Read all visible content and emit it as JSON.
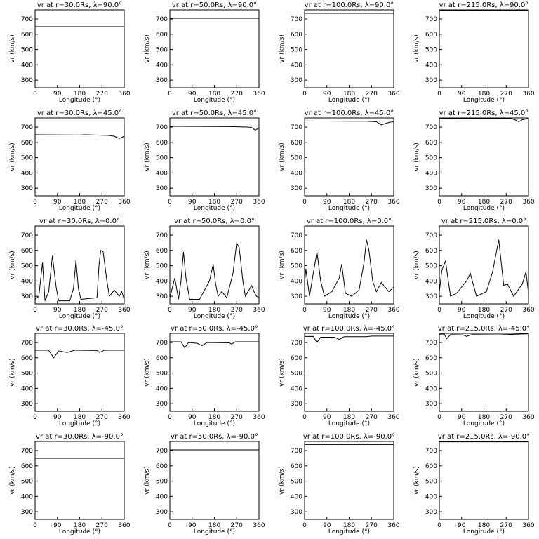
{
  "chart_data": [
    {
      "type": "line",
      "title": "vr at r=30.0Rs, λ=90.0°",
      "xlabel": "Longitude (°)",
      "ylabel": "vr (km/s)",
      "x": [
        0,
        360
      ],
      "values": [
        650,
        650
      ],
      "xlim": [
        0,
        360
      ],
      "ylim": [
        250,
        760
      ],
      "xticks": [
        0,
        90,
        180,
        270,
        360
      ],
      "yticks": [
        300,
        400,
        500,
        600,
        700
      ],
      "color": "#000000"
    },
    {
      "type": "line",
      "title": "vr at r=50.0Rs, λ=90.0°",
      "xlabel": "Longitude (°)",
      "ylabel": "vr (km/s)",
      "x": [
        0,
        360
      ],
      "values": [
        705,
        705
      ],
      "xlim": [
        0,
        360
      ],
      "ylim": [
        250,
        760
      ],
      "xticks": [
        0,
        90,
        180,
        270,
        360
      ],
      "yticks": [
        300,
        400,
        500,
        600,
        700
      ],
      "color": "#000000"
    },
    {
      "type": "line",
      "title": "vr at r=100.0Rs, λ=90.0°",
      "xlabel": "Longitude (°)",
      "ylabel": "vr (km/s)",
      "x": [
        0,
        360
      ],
      "values": [
        737,
        737
      ],
      "xlim": [
        0,
        360
      ],
      "ylim": [
        250,
        760
      ],
      "xticks": [
        0,
        90,
        180,
        270,
        360
      ],
      "yticks": [
        300,
        400,
        500,
        600,
        700
      ],
      "color": "#000000"
    },
    {
      "type": "line",
      "title": "vr at r=215.0Rs, λ=90.0°",
      "xlabel": "Longitude (°)",
      "ylabel": "vr (km/s)",
      "x": [
        0,
        360
      ],
      "values": [
        757,
        757
      ],
      "xlim": [
        0,
        360
      ],
      "ylim": [
        250,
        760
      ],
      "xticks": [
        0,
        90,
        180,
        270,
        360
      ],
      "yticks": [
        300,
        400,
        500,
        600,
        700
      ],
      "color": "#000000"
    },
    {
      "type": "line",
      "title": "vr at r=30.0Rs, λ=45.0°",
      "xlabel": "Longitude (°)",
      "ylabel": "vr (km/s)",
      "x": [
        0,
        180,
        200,
        300,
        320,
        340,
        350,
        360
      ],
      "values": [
        650,
        648,
        650,
        645,
        640,
        625,
        632,
        640
      ],
      "xlim": [
        0,
        360
      ],
      "ylim": [
        250,
        760
      ],
      "xticks": [
        0,
        90,
        180,
        270,
        360
      ],
      "yticks": [
        300,
        400,
        500,
        600,
        700
      ],
      "color": "#000000"
    },
    {
      "type": "line",
      "title": "vr at r=50.0Rs, λ=45.0°",
      "xlabel": "Longitude (°)",
      "ylabel": "vr (km/s)",
      "x": [
        0,
        250,
        310,
        330,
        345,
        355,
        360
      ],
      "values": [
        705,
        703,
        700,
        698,
        680,
        690,
        695
      ],
      "xlim": [
        0,
        360
      ],
      "ylim": [
        250,
        760
      ],
      "xticks": [
        0,
        90,
        180,
        270,
        360
      ],
      "yticks": [
        300,
        400,
        500,
        600,
        700
      ],
      "color": "#000000"
    },
    {
      "type": "line",
      "title": "vr at r=100.0Rs, λ=45.0°",
      "xlabel": "Longitude (°)",
      "ylabel": "vr (km/s)",
      "x": [
        0,
        250,
        290,
        310,
        330,
        345,
        360
      ],
      "values": [
        740,
        738,
        735,
        715,
        725,
        732,
        735
      ],
      "xlim": [
        0,
        360
      ],
      "ylim": [
        250,
        760
      ],
      "xticks": [
        0,
        90,
        180,
        270,
        360
      ],
      "yticks": [
        300,
        400,
        500,
        600,
        700
      ],
      "color": "#000000"
    },
    {
      "type": "line",
      "title": "vr at r=215.0Rs, λ=45.0°",
      "xlabel": "Longitude (°)",
      "ylabel": "vr (km/s)",
      "x": [
        0,
        290,
        310,
        320,
        335,
        360
      ],
      "values": [
        757,
        756,
        745,
        735,
        748,
        757
      ],
      "xlim": [
        0,
        360
      ],
      "ylim": [
        250,
        760
      ],
      "xticks": [
        0,
        90,
        180,
        270,
        360
      ],
      "yticks": [
        300,
        400,
        500,
        600,
        700
      ],
      "color": "#000000"
    },
    {
      "type": "line",
      "title": "vr at r=30.0Rs, λ=0.0°",
      "xlabel": "Longitude (°)",
      "ylabel": "vr (km/s)",
      "x": [
        0,
        15,
        30,
        40,
        55,
        70,
        85,
        95,
        140,
        155,
        165,
        175,
        185,
        250,
        258,
        265,
        275,
        290,
        300,
        320,
        340,
        350,
        360
      ],
      "values": [
        280,
        300,
        520,
        270,
        330,
        565,
        360,
        270,
        270,
        350,
        535,
        350,
        280,
        290,
        500,
        600,
        590,
        400,
        300,
        340,
        300,
        330,
        280
      ],
      "xlim": [
        0,
        360
      ],
      "ylim": [
        250,
        760
      ],
      "xticks": [
        0,
        90,
        180,
        270,
        360
      ],
      "yticks": [
        300,
        400,
        500,
        600,
        700
      ],
      "color": "#000000"
    },
    {
      "type": "line",
      "title": "vr at r=50.0Rs, λ=0.0°",
      "xlabel": "Longitude (°)",
      "ylabel": "vr (km/s)",
      "x": [
        0,
        20,
        35,
        45,
        55,
        65,
        80,
        120,
        160,
        175,
        185,
        195,
        210,
        230,
        255,
        270,
        280,
        295,
        305,
        330,
        340,
        350,
        360
      ],
      "values": [
        290,
        420,
        280,
        400,
        590,
        420,
        280,
        280,
        400,
        510,
        380,
        300,
        330,
        290,
        450,
        650,
        620,
        400,
        300,
        370,
        330,
        300,
        290
      ],
      "xlim": [
        0,
        360
      ],
      "ylim": [
        250,
        760
      ],
      "xticks": [
        0,
        90,
        180,
        270,
        360
      ],
      "yticks": [
        300,
        400,
        500,
        600,
        700
      ],
      "color": "#000000"
    },
    {
      "type": "line",
      "title": "vr at r=100.0Rs, λ=0.0°",
      "xlabel": "Longitude (°)",
      "ylabel": "vr (km/s)",
      "x": [
        0,
        5,
        20,
        35,
        50,
        65,
        80,
        110,
        140,
        150,
        165,
        190,
        220,
        240,
        250,
        260,
        275,
        290,
        310,
        340,
        360
      ],
      "values": [
        380,
        480,
        300,
        450,
        590,
        400,
        300,
        330,
        420,
        510,
        320,
        300,
        340,
        520,
        670,
        600,
        400,
        330,
        390,
        330,
        360
      ],
      "xlim": [
        0,
        360
      ],
      "ylim": [
        250,
        760
      ],
      "xticks": [
        0,
        90,
        180,
        270,
        360
      ],
      "yticks": [
        300,
        400,
        500,
        600,
        700
      ],
      "color": "#000000"
    },
    {
      "type": "line",
      "title": "vr at r=215.0Rs, λ=0.0°",
      "xlabel": "Longitude (°)",
      "ylabel": "vr (km/s)",
      "x": [
        0,
        10,
        25,
        45,
        70,
        110,
        125,
        150,
        190,
        215,
        240,
        260,
        275,
        300,
        335,
        350,
        360
      ],
      "values": [
        330,
        470,
        530,
        300,
        320,
        400,
        450,
        300,
        330,
        460,
        670,
        370,
        380,
        300,
        380,
        460,
        320
      ],
      "xlim": [
        0,
        360
      ],
      "ylim": [
        250,
        760
      ],
      "xticks": [
        0,
        90,
        180,
        270,
        360
      ],
      "yticks": [
        300,
        400,
        500,
        600,
        700
      ],
      "color": "#000000"
    },
    {
      "type": "line",
      "title": "vr at r=30.0Rs, λ=-45.0°",
      "xlabel": "Longitude (°)",
      "ylabel": "vr (km/s)",
      "x": [
        0,
        55,
        75,
        95,
        130,
        160,
        250,
        260,
        280,
        360
      ],
      "values": [
        650,
        650,
        600,
        645,
        635,
        650,
        648,
        635,
        650,
        650
      ],
      "xlim": [
        0,
        360
      ],
      "ylim": [
        250,
        760
      ],
      "xticks": [
        0,
        90,
        180,
        270,
        360
      ],
      "yticks": [
        300,
        400,
        500,
        600,
        700
      ],
      "color": "#000000"
    },
    {
      "type": "line",
      "title": "vr at r=50.0Rs, λ=-45.0°",
      "xlabel": "Longitude (°)",
      "ylabel": "vr (km/s)",
      "x": [
        0,
        45,
        60,
        75,
        110,
        130,
        150,
        240,
        250,
        265,
        360
      ],
      "values": [
        705,
        705,
        665,
        700,
        695,
        680,
        700,
        698,
        690,
        705,
        705
      ],
      "xlim": [
        0,
        360
      ],
      "ylim": [
        250,
        760
      ],
      "xticks": [
        0,
        90,
        180,
        270,
        360
      ],
      "yticks": [
        300,
        400,
        500,
        600,
        700
      ],
      "color": "#000000"
    },
    {
      "type": "line",
      "title": "vr at r=100.0Rs, λ=-45.0°",
      "xlabel": "Longitude (°)",
      "ylabel": "vr (km/s)",
      "x": [
        0,
        35,
        50,
        65,
        120,
        140,
        160,
        250,
        270,
        360
      ],
      "values": [
        740,
        740,
        700,
        735,
        735,
        720,
        738,
        738,
        742,
        742
      ],
      "xlim": [
        0,
        360
      ],
      "ylim": [
        250,
        760
      ],
      "xticks": [
        0,
        90,
        180,
        270,
        360
      ],
      "yticks": [
        300,
        400,
        500,
        600,
        700
      ],
      "color": "#000000"
    },
    {
      "type": "line",
      "title": "vr at r=215.0Rs, λ=-45.0°",
      "xlabel": "Longitude (°)",
      "ylabel": "vr (km/s)",
      "x": [
        0,
        20,
        30,
        45,
        95,
        110,
        130,
        240,
        360
      ],
      "values": [
        755,
        755,
        725,
        752,
        750,
        740,
        752,
        750,
        757
      ],
      "xlim": [
        0,
        360
      ],
      "ylim": [
        250,
        760
      ],
      "xticks": [
        0,
        90,
        180,
        270,
        360
      ],
      "yticks": [
        300,
        400,
        500,
        600,
        700
      ],
      "color": "#000000"
    },
    {
      "type": "line",
      "title": "vr at r=30.0Rs, λ=-90.0°",
      "xlabel": "Longitude (°)",
      "ylabel": "vr (km/s)",
      "x": [
        0,
        360
      ],
      "values": [
        650,
        650
      ],
      "xlim": [
        0,
        360
      ],
      "ylim": [
        250,
        760
      ],
      "xticks": [
        0,
        90,
        180,
        270,
        360
      ],
      "yticks": [
        300,
        400,
        500,
        600,
        700
      ],
      "color": "#000000"
    },
    {
      "type": "line",
      "title": "vr at r=50.0Rs, λ=-90.0°",
      "xlabel": "Longitude (°)",
      "ylabel": "vr (km/s)",
      "x": [
        0,
        360
      ],
      "values": [
        705,
        705
      ],
      "xlim": [
        0,
        360
      ],
      "ylim": [
        250,
        760
      ],
      "xticks": [
        0,
        90,
        180,
        270,
        360
      ],
      "yticks": [
        300,
        400,
        500,
        600,
        700
      ],
      "color": "#000000"
    },
    {
      "type": "line",
      "title": "vr at r=100.0Rs, λ=-90.0°",
      "xlabel": "Longitude (°)",
      "ylabel": "vr (km/s)",
      "x": [
        0,
        360
      ],
      "values": [
        740,
        740
      ],
      "xlim": [
        0,
        360
      ],
      "ylim": [
        250,
        760
      ],
      "xticks": [
        0,
        90,
        180,
        270,
        360
      ],
      "yticks": [
        300,
        400,
        500,
        600,
        700
      ],
      "color": "#000000"
    },
    {
      "type": "line",
      "title": "vr at r=215.0Rs, λ=-90.0°",
      "xlabel": "Longitude (°)",
      "ylabel": "vr (km/s)",
      "x": [
        0,
        360
      ],
      "values": [
        757,
        757
      ],
      "xlim": [
        0,
        360
      ],
      "ylim": [
        250,
        760
      ],
      "xticks": [
        0,
        90,
        180,
        270,
        360
      ],
      "yticks": [
        300,
        400,
        500,
        600,
        700
      ],
      "color": "#000000"
    }
  ]
}
